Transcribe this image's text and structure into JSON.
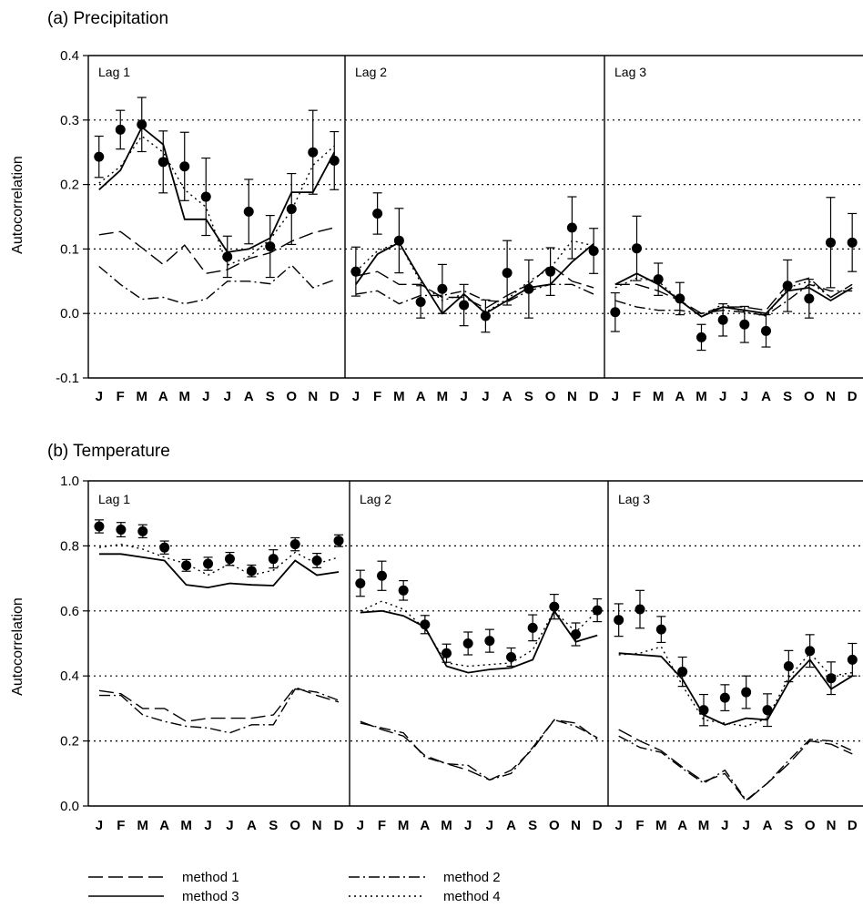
{
  "panels": [
    {
      "title": "(a) Precipitation",
      "ylabel": "Autocorrelation",
      "ylim": [
        -0.1,
        0.4
      ],
      "yticks": [
        "-0.1",
        "0.0",
        "0.1",
        "0.2",
        "0.3",
        "0.4"
      ],
      "gridlines": [
        0.0,
        0.1,
        0.2,
        0.3
      ]
    },
    {
      "title": "(b) Temperature",
      "ylabel": "Autocorrelation",
      "ylim": [
        0.0,
        1.0
      ],
      "yticks": [
        "0.0",
        "0.2",
        "0.4",
        "0.6",
        "0.8",
        "1.0"
      ],
      "gridlines": [
        0.2,
        0.4,
        0.6,
        0.8
      ]
    }
  ],
  "months": [
    "J",
    "F",
    "M",
    "A",
    "M",
    "J",
    "J",
    "A",
    "S",
    "O",
    "N",
    "D"
  ],
  "lags": [
    "Lag 1",
    "Lag 2",
    "Lag 3"
  ],
  "legend": {
    "method1": "method 1",
    "method2": "method 2",
    "method3": "method 3",
    "method4": "method 4"
  },
  "chart_data": [
    {
      "type": "line",
      "title": "(a) Precipitation",
      "ylabel": "Autocorrelation",
      "ylim": [
        -0.1,
        0.4
      ],
      "grid": "horizontal dotted",
      "subplots": [
        {
          "label": "Lag 1",
          "observed": [
            0.243,
            0.285,
            0.293,
            0.235,
            0.228,
            0.181,
            0.088,
            0.158,
            0.104,
            0.162,
            0.25,
            0.237
          ],
          "error": [
            0.032,
            0.03,
            0.042,
            0.048,
            0.053,
            0.06,
            0.032,
            0.05,
            0.048,
            0.055,
            0.065,
            0.045
          ],
          "series": [
            {
              "name": "method 1",
              "values": [
                0.122,
                0.127,
                0.102,
                0.076,
                0.106,
                0.062,
                0.068,
                0.085,
                0.094,
                0.112,
                0.125,
                0.133
              ]
            },
            {
              "name": "method 2",
              "values": [
                0.073,
                0.045,
                0.022,
                0.025,
                0.015,
                0.022,
                0.05,
                0.05,
                0.046,
                0.075,
                0.04,
                0.052
              ]
            },
            {
              "name": "method 3",
              "values": [
                0.192,
                0.222,
                0.289,
                0.262,
                0.146,
                0.146,
                0.095,
                0.1,
                0.117,
                0.188,
                0.188,
                0.25
              ]
            },
            {
              "name": "method 4",
              "values": [
                0.202,
                0.228,
                0.275,
                0.25,
                0.192,
                0.165,
                0.075,
                0.088,
                0.115,
                0.16,
                0.23,
                0.26
              ]
            }
          ]
        },
        {
          "label": "Lag 2",
          "observed": [
            0.065,
            0.155,
            0.113,
            0.018,
            0.038,
            0.013,
            -0.004,
            0.063,
            0.038,
            0.065,
            0.133,
            0.097
          ],
          "error": [
            0.038,
            0.032,
            0.05,
            0.025,
            0.038,
            0.032,
            0.025,
            0.05,
            0.045,
            0.037,
            0.048,
            0.035
          ],
          "series": [
            {
              "name": "method 1",
              "values": [
                0.058,
                0.065,
                0.045,
                0.045,
                0.025,
                0.025,
                0.008,
                0.028,
                0.045,
                0.075,
                0.05,
                0.04
              ]
            },
            {
              "name": "method 2",
              "values": [
                0.03,
                0.035,
                0.015,
                0.028,
                0.028,
                0.035,
                0.02,
                0.018,
                0.035,
                0.045,
                0.045,
                0.03
              ]
            },
            {
              "name": "method 3",
              "values": [
                0.045,
                0.092,
                0.11,
                0.053,
                0.0,
                0.03,
                0.0,
                0.02,
                0.04,
                0.045,
                0.08,
                0.108
              ]
            },
            {
              "name": "method 4",
              "values": [
                0.065,
                0.097,
                0.11,
                0.048,
                0.02,
                0.03,
                0.002,
                0.022,
                0.05,
                0.07,
                0.113,
                0.105
              ]
            }
          ]
        },
        {
          "label": "Lag 3",
          "observed": [
            0.002,
            0.101,
            0.053,
            0.023,
            -0.037,
            -0.01,
            -0.017,
            -0.027,
            0.043,
            0.023,
            0.11,
            0.11
          ],
          "error": [
            0.03,
            0.05,
            0.025,
            0.025,
            0.02,
            0.025,
            0.028,
            0.025,
            0.04,
            0.03,
            0.07,
            0.045
          ],
          "series": [
            {
              "name": "method 1",
              "values": [
                0.045,
                0.045,
                0.035,
                0.02,
                0.0,
                0.01,
                0.01,
                0.005,
                0.045,
                0.055,
                0.025,
                0.045
              ]
            },
            {
              "name": "method 2",
              "values": [
                0.02,
                0.01,
                0.005,
                0.005,
                0.0,
                0.005,
                0.002,
                -0.003,
                0.02,
                0.045,
                0.035,
                0.035
              ]
            },
            {
              "name": "method 3",
              "values": [
                0.045,
                0.062,
                0.045,
                0.02,
                -0.005,
                0.01,
                0.005,
                0.0,
                0.035,
                0.04,
                0.02,
                0.04
              ]
            },
            {
              "name": "method 4",
              "values": [
                0.04,
                0.055,
                0.05,
                0.02,
                -0.005,
                0.015,
                0.002,
                -0.004,
                0.04,
                0.05,
                0.025,
                0.045
              ]
            }
          ]
        }
      ]
    },
    {
      "type": "line",
      "title": "(b) Temperature",
      "ylabel": "Autocorrelation",
      "ylim": [
        0.0,
        1.0
      ],
      "grid": "horizontal dotted",
      "subplots": [
        {
          "label": "Lag 1",
          "observed": [
            0.86,
            0.85,
            0.845,
            0.795,
            0.74,
            0.745,
            0.76,
            0.723,
            0.76,
            0.805,
            0.755,
            0.816
          ],
          "error": [
            0.02,
            0.022,
            0.02,
            0.02,
            0.018,
            0.02,
            0.02,
            0.018,
            0.028,
            0.02,
            0.022,
            0.018
          ],
          "series": [
            {
              "name": "method 1",
              "values": [
                0.355,
                0.345,
                0.3,
                0.3,
                0.26,
                0.27,
                0.27,
                0.27,
                0.28,
                0.365,
                0.34,
                0.32
              ]
            },
            {
              "name": "method 2",
              "values": [
                0.34,
                0.34,
                0.28,
                0.26,
                0.245,
                0.24,
                0.225,
                0.25,
                0.25,
                0.36,
                0.35,
                0.325
              ]
            },
            {
              "name": "method 3",
              "values": [
                0.775,
                0.775,
                0.765,
                0.755,
                0.68,
                0.672,
                0.685,
                0.68,
                0.678,
                0.755,
                0.71,
                0.72
              ]
            },
            {
              "name": "method 4",
              "values": [
                0.795,
                0.805,
                0.79,
                0.765,
                0.745,
                0.71,
                0.745,
                0.71,
                0.725,
                0.78,
                0.745,
                0.765
              ]
            }
          ]
        },
        {
          "label": "Lag 2",
          "observed": [
            0.685,
            0.708,
            0.663,
            0.558,
            0.47,
            0.5,
            0.508,
            0.458,
            0.548,
            0.613,
            0.528,
            0.602
          ],
          "error": [
            0.04,
            0.045,
            0.03,
            0.028,
            0.028,
            0.035,
            0.035,
            0.028,
            0.04,
            0.038,
            0.035,
            0.035
          ],
          "series": [
            {
              "name": "method 1",
              "values": [
                0.26,
                0.235,
                0.215,
                0.155,
                0.13,
                0.11,
                0.08,
                0.11,
                0.175,
                0.265,
                0.255,
                0.205
              ]
            },
            {
              "name": "method 2",
              "values": [
                0.255,
                0.24,
                0.225,
                0.15,
                0.13,
                0.125,
                0.08,
                0.1,
                0.18,
                0.265,
                0.245,
                0.21
              ]
            },
            {
              "name": "method 3",
              "values": [
                0.595,
                0.6,
                0.585,
                0.55,
                0.43,
                0.41,
                0.42,
                0.425,
                0.45,
                0.6,
                0.505,
                0.525
              ]
            },
            {
              "name": "method 4",
              "values": [
                0.6,
                0.63,
                0.605,
                0.545,
                0.44,
                0.43,
                0.435,
                0.44,
                0.48,
                0.6,
                0.535,
                0.6
              ]
            }
          ]
        },
        {
          "label": "Lag 3",
          "observed": [
            0.572,
            0.605,
            0.543,
            0.413,
            0.295,
            0.333,
            0.35,
            0.295,
            0.43,
            0.477,
            0.393,
            0.45
          ],
          "error": [
            0.05,
            0.058,
            0.04,
            0.045,
            0.048,
            0.04,
            0.05,
            0.05,
            0.048,
            0.05,
            0.05,
            0.05
          ],
          "series": [
            {
              "name": "method 1",
              "values": [
                0.235,
                0.2,
                0.17,
                0.12,
                0.075,
                0.1,
                0.015,
                0.07,
                0.13,
                0.2,
                0.19,
                0.16
              ]
            },
            {
              "name": "method 2",
              "values": [
                0.215,
                0.18,
                0.165,
                0.115,
                0.07,
                0.11,
                0.018,
                0.07,
                0.14,
                0.205,
                0.2,
                0.17
              ]
            },
            {
              "name": "method 3",
              "values": [
                0.47,
                0.465,
                0.46,
                0.39,
                0.28,
                0.25,
                0.27,
                0.265,
                0.38,
                0.45,
                0.36,
                0.4
              ]
            },
            {
              "name": "method 4",
              "values": [
                0.465,
                0.47,
                0.49,
                0.37,
                0.265,
                0.255,
                0.245,
                0.27,
                0.395,
                0.47,
                0.4,
                0.41
              ]
            }
          ]
        }
      ]
    }
  ]
}
